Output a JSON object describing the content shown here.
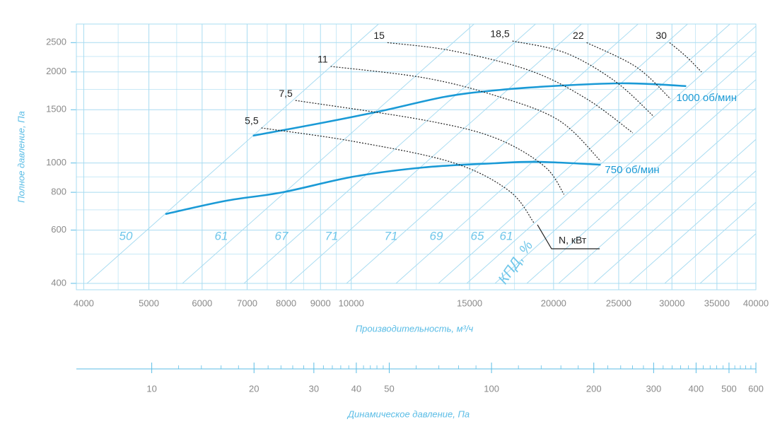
{
  "chart_data": [
    {
      "type": "line",
      "x_label": "Производительность, м³/ч",
      "y_label": "Полное давление, Па",
      "log_x": true,
      "log_y": true,
      "grid": true,
      "xlim": [
        3900,
        40000
      ],
      "ylim": [
        381,
        2880
      ],
      "xticks": [
        4000,
        5000,
        6000,
        7000,
        8000,
        9000,
        10000,
        15000,
        20000,
        25000,
        30000,
        35000,
        40000
      ],
      "yticks": [
        400,
        600,
        800,
        1000,
        1500,
        2000,
        2500
      ],
      "efficiency_label": "КПД, %",
      "efficiency_values": [
        50,
        61,
        67,
        71,
        71,
        69,
        65,
        61
      ],
      "power_label": "N, кВт",
      "series": [
        {
          "name": "1000 об/мин",
          "color": "#1a9ad6",
          "style": "solid",
          "x": [
            7140,
            8920,
            11090,
            13800,
            16360,
            19850,
            24700,
            27900,
            31500
          ],
          "values": [
            1231,
            1349,
            1486,
            1656,
            1738,
            1795,
            1833,
            1824,
            1795
          ]
        },
        {
          "name": "750 об/мин",
          "color": "#1a9ad6",
          "style": "solid",
          "x": [
            5290,
            6510,
            7900,
            10070,
            12830,
            16360,
            18900,
            23500
          ],
          "values": [
            678,
            750,
            800,
            901,
            967,
            998,
            1009,
            987
          ]
        },
        {
          "name": "5,5",
          "color": "#222222",
          "style": "dotted",
          "x": [
            7350,
            10070,
            14140,
            17170,
            18690
          ],
          "values": [
            1306,
            1179,
            1004,
            809,
            635
          ]
        },
        {
          "name": "7,5",
          "color": "#222222",
          "style": "dotted",
          "x": [
            8260,
            12830,
            16360,
            19360,
            20730
          ],
          "values": [
            1610,
            1386,
            1211,
            977,
            787
          ]
        },
        {
          "name": "11",
          "color": "#222222",
          "style": "dotted",
          "x": [
            9320,
            12830,
            16360,
            20340,
            23500
          ],
          "values": [
            2086,
            1913,
            1672,
            1386,
            1015
          ]
        },
        {
          "name": "15",
          "color": "#222222",
          "style": "dotted",
          "x": [
            11320,
            14140,
            18460,
            22400,
            26230
          ],
          "values": [
            2500,
            2349,
            2019,
            1629,
            1258
          ]
        },
        {
          "name": "18,5",
          "color": "#222222",
          "style": "dotted",
          "x": [
            17370,
            20840,
            24700,
            28200
          ],
          "values": [
            2531,
            2311,
            1862,
            1423
          ]
        },
        {
          "name": "22",
          "color": "#222222",
          "style": "dotted",
          "x": [
            22400,
            26560,
            29850
          ],
          "values": [
            2500,
            2075,
            1629
          ]
        },
        {
          "name": "30",
          "color": "#222222",
          "style": "dotted",
          "x": [
            29760,
            31500,
            33200
          ],
          "values": [
            2500,
            2249,
            1999
          ]
        }
      ]
    },
    {
      "type": "scale",
      "x_label": "Динамическое давление, Па",
      "log_x": true,
      "xlim": [
        6,
        600
      ],
      "xticks": [
        10,
        20,
        30,
        40,
        50,
        100,
        200,
        300,
        400,
        500,
        600
      ]
    }
  ]
}
